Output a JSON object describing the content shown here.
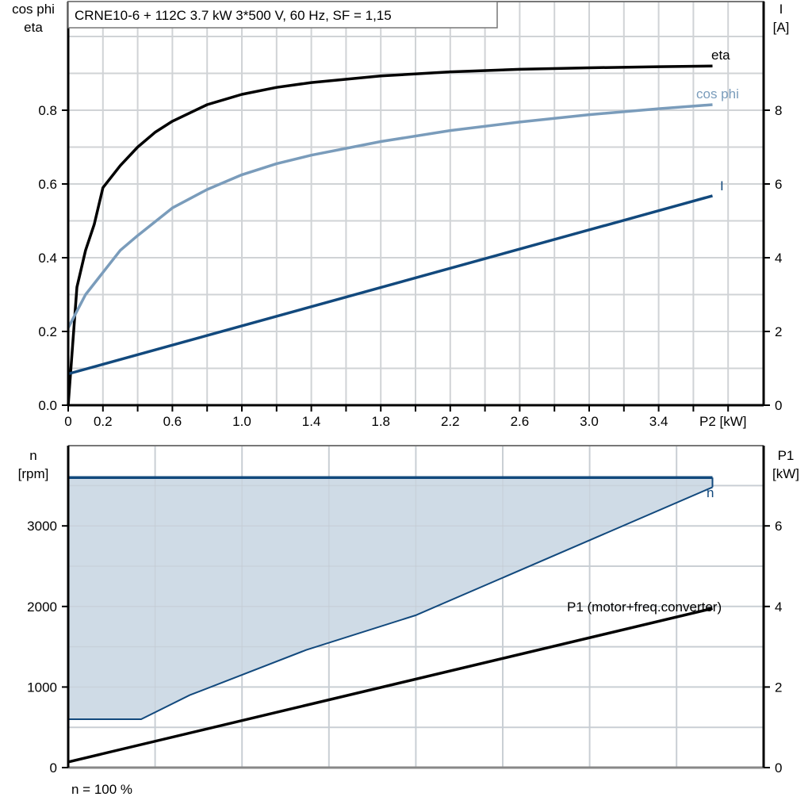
{
  "title": "CRNE10-6 + 112C   3.7 kW   3*500 V, 60 Hz, SF = 1,15",
  "footer_note": "n = 100 %",
  "colors": {
    "eta": "#000000",
    "cos_phi": "#7a9cbb",
    "current": "#12497d",
    "speed": "#12497d",
    "speed_fill": "#cfdbe6",
    "p1": "#000000",
    "grid": "#d0d3d6"
  },
  "chart_data": [
    {
      "type": "line",
      "title": "CRNE10-6 + 112C   3.7 kW   3*500 V, 60 Hz, SF = 1,15",
      "xlabel": "P2 [kW]",
      "ylabel_left": [
        "cos phi",
        "eta"
      ],
      "ylabel_right": [
        "I",
        "[A]"
      ],
      "xlim": [
        0,
        3.9
      ],
      "ylim_left": [
        0,
        1.09
      ],
      "ylim_right": [
        0,
        10.9
      ],
      "x_ticks": [
        "0",
        "0.2",
        "0.6",
        "1.0",
        "1.4",
        "1.8",
        "2.2",
        "2.6",
        "3.0",
        "3.4"
      ],
      "y_left_ticks": [
        "0.0",
        "0.2",
        "0.4",
        "0.6",
        "0.8"
      ],
      "y_right_ticks": [
        "0",
        "2",
        "4",
        "6",
        "8"
      ],
      "grid": true,
      "series": [
        {
          "name": "eta",
          "axis": "left",
          "x": [
            0,
            0.05,
            0.1,
            0.15,
            0.2,
            0.3,
            0.4,
            0.5,
            0.6,
            0.8,
            1.0,
            1.2,
            1.4,
            1.8,
            2.2,
            2.6,
            3.0,
            3.4,
            3.71
          ],
          "y": [
            0.0,
            0.32,
            0.42,
            0.49,
            0.59,
            0.65,
            0.7,
            0.74,
            0.77,
            0.815,
            0.843,
            0.862,
            0.875,
            0.893,
            0.904,
            0.911,
            0.915,
            0.918,
            0.92
          ]
        },
        {
          "name": "cos phi",
          "axis": "left",
          "x": [
            0,
            0.1,
            0.2,
            0.3,
            0.4,
            0.6,
            0.8,
            1.0,
            1.2,
            1.4,
            1.8,
            2.2,
            2.6,
            3.0,
            3.4,
            3.71
          ],
          "y": [
            0.21,
            0.3,
            0.36,
            0.42,
            0.46,
            0.535,
            0.585,
            0.625,
            0.655,
            0.678,
            0.715,
            0.745,
            0.768,
            0.788,
            0.804,
            0.815
          ]
        },
        {
          "name": "I",
          "axis": "right",
          "x": [
            0,
            3.71
          ],
          "y": [
            0.85,
            5.68
          ]
        }
      ]
    },
    {
      "type": "area",
      "xlabel": "",
      "ylabel_left": [
        "n",
        "[rpm]"
      ],
      "ylabel_right": [
        "P1",
        "[kW]"
      ],
      "xlim": [
        0,
        3.9
      ],
      "ylim_left": [
        0,
        4000
      ],
      "ylim_right": [
        0,
        8
      ],
      "y_left_ticks": [
        "0",
        "1000",
        "2000",
        "3000"
      ],
      "y_right_ticks": [
        "0",
        "2",
        "4",
        "6"
      ],
      "grid": true,
      "annotation": "n = 100 %",
      "series": [
        {
          "name": "n (max)",
          "axis": "left",
          "x": [
            0,
            3.71
          ],
          "y": [
            3600,
            3600
          ]
        },
        {
          "name": "n (min)",
          "axis": "left",
          "x": [
            0,
            0.42,
            0.7,
            1.37,
            2.0,
            3.71
          ],
          "y": [
            600,
            600,
            900,
            1460,
            1890,
            3480
          ]
        },
        {
          "name": "P1 (motor+freq.converter)",
          "axis": "right",
          "x": [
            0,
            3.71
          ],
          "y": [
            0.14,
            3.95
          ]
        }
      ],
      "labels": {
        "n": "n",
        "p1": "P1 (motor+freq.converter)"
      }
    }
  ],
  "labels": {
    "eta": "eta",
    "cos_phi": "cos phi",
    "current": "I"
  }
}
